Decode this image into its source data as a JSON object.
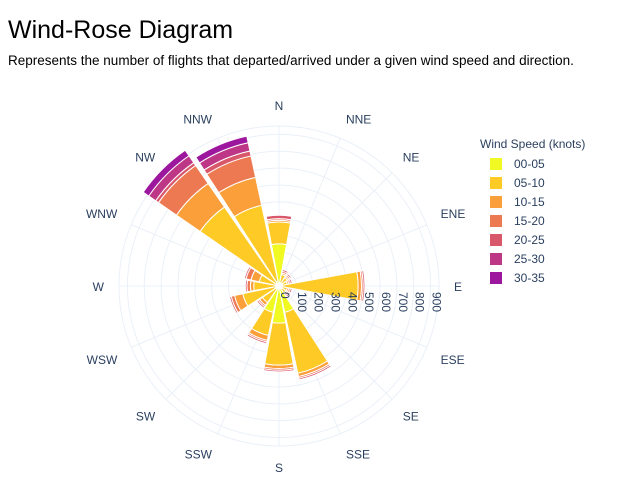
{
  "title": "Wind-Rose Diagram",
  "subtitle": "Represents the number of flights that departed/arrived under a given wind speed and direction.",
  "chart_data": {
    "type": "barpolar",
    "directions": [
      "N",
      "NNE",
      "NE",
      "ENE",
      "E",
      "ESE",
      "SE",
      "SSE",
      "S",
      "SSW",
      "SW",
      "WSW",
      "W",
      "WNW",
      "NW",
      "NNW"
    ],
    "radial_ticks": [
      0,
      100,
      200,
      300,
      400,
      500,
      600,
      700,
      800,
      900
    ],
    "radial_range": [
      0,
      950
    ],
    "legend_title": "Wind Speed (knots)",
    "legend_position": "right",
    "series": [
      {
        "name": "00-05",
        "color": "#f0f921",
        "values": [
          250,
          20,
          20,
          20,
          20,
          20,
          20,
          160,
          220,
          160,
          20,
          20,
          20,
          20,
          20,
          30
        ]
      },
      {
        "name": "05-10",
        "color": "#fdca26",
        "values": [
          130,
          50,
          40,
          30,
          450,
          30,
          30,
          370,
          250,
          140,
          100,
          200,
          130,
          100,
          550,
          460
        ]
      },
      {
        "name": "10-15",
        "color": "#fb9f3a",
        "values": [
          10,
          10,
          10,
          10,
          20,
          10,
          10,
          20,
          20,
          30,
          20,
          50,
          20,
          50,
          170,
          170
        ]
      },
      {
        "name": "15-20",
        "color": "#ed7953",
        "values": [
          10,
          10,
          10,
          10,
          10,
          10,
          10,
          10,
          10,
          10,
          10,
          20,
          20,
          30,
          130,
          130
        ]
      },
      {
        "name": "20-25",
        "color": "#d8576b",
        "values": [
          20,
          10,
          10,
          10,
          10,
          10,
          10,
          10,
          10,
          10,
          10,
          10,
          10,
          10,
          20,
          30
        ]
      },
      {
        "name": "25-30",
        "color": "#bd3786",
        "values": [
          0,
          0,
          0,
          0,
          0,
          0,
          0,
          0,
          0,
          0,
          0,
          0,
          0,
          0,
          50,
          50
        ]
      },
      {
        "name": "30-35",
        "color": "#9c179e",
        "values": [
          0,
          0,
          0,
          0,
          0,
          0,
          0,
          0,
          0,
          0,
          0,
          0,
          0,
          0,
          40,
          40
        ]
      }
    ]
  }
}
